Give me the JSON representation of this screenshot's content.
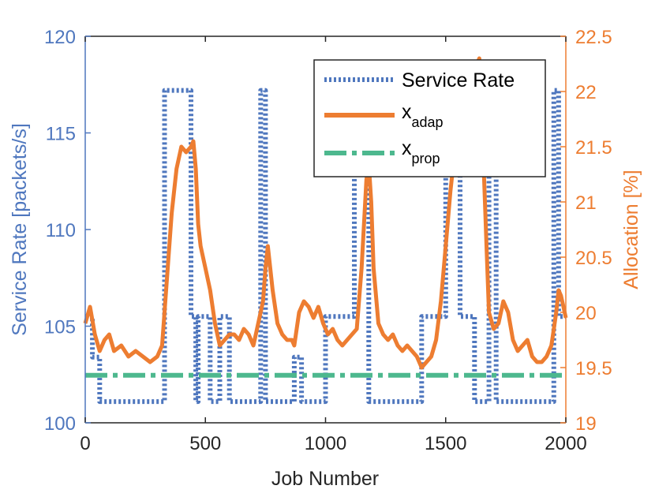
{
  "chart_data": {
    "type": "line",
    "xlabel": "Job Number",
    "ylabel_left": "Service Rate [packets/s]",
    "ylabel_right": "Allocation [%]",
    "xlim": [
      0,
      2000
    ],
    "ylim_left": [
      100,
      120
    ],
    "ylim_right": [
      19,
      22.5
    ],
    "x_ticks": [
      "0",
      "500",
      "1000",
      "1500",
      "2000"
    ],
    "x_tick_values": [
      0,
      500,
      1000,
      1500,
      2000
    ],
    "y_left_ticks": [
      "100",
      "105",
      "110",
      "115",
      "120"
    ],
    "y_left_tick_values": [
      100,
      105,
      110,
      115,
      120
    ],
    "y_right_ticks": [
      "19",
      "19.5",
      "20",
      "20.5",
      "21",
      "21.5",
      "22",
      "22.5"
    ],
    "y_right_tick_values": [
      19,
      19.5,
      20,
      20.5,
      21,
      21.5,
      22,
      22.5
    ],
    "legend": {
      "position": "top-right",
      "entries": [
        {
          "label": "Service Rate",
          "sub": ""
        },
        {
          "label": "x",
          "sub": "adap"
        },
        {
          "label": "x",
          "sub": "prop"
        }
      ]
    },
    "colors": {
      "service_rate": "#4f77be",
      "x_adap": "#ed7d31",
      "x_prop": "#4db88e",
      "axis": "#262626"
    },
    "series": [
      {
        "name": "Service Rate",
        "axis": "left",
        "style": "dotted",
        "x": [
          0,
          30,
          30,
          60,
          60,
          330,
          330,
          380,
          380,
          440,
          440,
          460,
          460,
          470,
          470,
          520,
          520,
          560,
          560,
          600,
          600,
          630,
          630,
          730,
          730,
          750,
          750,
          870,
          870,
          900,
          900,
          1000,
          1000,
          1120,
          1120,
          1180,
          1180,
          1200,
          1200,
          1400,
          1400,
          1500,
          1500,
          1560,
          1560,
          1620,
          1620,
          1680,
          1680,
          1710,
          1710,
          1730,
          1730,
          1950,
          1950,
          1970,
          1970,
          2000
        ],
        "y": [
          105.5,
          105.5,
          103.4,
          103.4,
          101.1,
          101.1,
          117.2,
          117.2,
          117.2,
          117.2,
          105.5,
          105.5,
          101.1,
          101.1,
          105.5,
          105.5,
          101.1,
          101.1,
          105.5,
          105.5,
          101.1,
          101.1,
          101.1,
          101.1,
          117.2,
          117.2,
          101.1,
          101.1,
          103.4,
          103.4,
          101.1,
          101.1,
          105.5,
          105.5,
          117.2,
          117.2,
          101.1,
          101.1,
          101.1,
          101.1,
          105.5,
          105.5,
          117.2,
          117.2,
          105.5,
          105.5,
          101.1,
          101.1,
          117.2,
          117.2,
          101.1,
          101.1,
          101.1,
          101.1,
          117.2,
          117.2,
          105.5,
          105.5
        ]
      },
      {
        "name": "x_adap",
        "axis": "right",
        "style": "solid",
        "x": [
          0,
          20,
          40,
          60,
          80,
          100,
          120,
          150,
          180,
          210,
          240,
          270,
          300,
          320,
          340,
          360,
          380,
          400,
          420,
          440,
          450,
          460,
          470,
          480,
          500,
          520,
          540,
          560,
          580,
          600,
          620,
          640,
          660,
          680,
          700,
          720,
          740,
          750,
          760,
          780,
          800,
          820,
          840,
          860,
          870,
          890,
          910,
          930,
          950,
          970,
          990,
          1010,
          1030,
          1050,
          1070,
          1090,
          1110,
          1130,
          1150,
          1170,
          1180,
          1190,
          1200,
          1220,
          1240,
          1260,
          1280,
          1300,
          1320,
          1340,
          1360,
          1380,
          1400,
          1420,
          1440,
          1460,
          1480,
          1500,
          1520,
          1540,
          1560,
          1580,
          1600,
          1620,
          1630,
          1640,
          1650,
          1660,
          1670,
          1680,
          1700,
          1720,
          1740,
          1760,
          1780,
          1800,
          1820,
          1840,
          1860,
          1880,
          1900,
          1920,
          1940,
          1950,
          1960,
          1970,
          1980,
          1990,
          2000
        ],
        "y": [
          19.9,
          20.05,
          19.8,
          19.65,
          19.75,
          19.8,
          19.65,
          19.7,
          19.6,
          19.65,
          19.6,
          19.55,
          19.6,
          19.7,
          20.3,
          20.9,
          21.3,
          21.5,
          21.45,
          21.5,
          21.55,
          21.3,
          20.8,
          20.6,
          20.4,
          20.2,
          19.9,
          19.7,
          19.75,
          19.8,
          19.8,
          19.75,
          19.85,
          19.8,
          19.7,
          19.9,
          20.1,
          20.4,
          20.6,
          20.2,
          19.9,
          19.8,
          19.75,
          19.75,
          19.7,
          20.0,
          20.1,
          20.05,
          19.95,
          20.05,
          19.9,
          19.8,
          19.85,
          19.75,
          19.7,
          19.75,
          19.8,
          19.85,
          20.4,
          21.2,
          21.35,
          21.0,
          20.4,
          19.9,
          19.8,
          19.75,
          19.8,
          19.7,
          19.65,
          19.7,
          19.65,
          19.6,
          19.5,
          19.55,
          19.6,
          19.75,
          20.1,
          20.6,
          21.1,
          21.5,
          21.8,
          21.9,
          21.95,
          22.1,
          22.25,
          22.3,
          21.8,
          21.2,
          20.6,
          20.0,
          19.85,
          19.9,
          20.1,
          20.0,
          19.75,
          19.65,
          19.7,
          19.75,
          19.6,
          19.55,
          19.55,
          19.6,
          19.7,
          19.85,
          20.0,
          20.2,
          20.15,
          20.05,
          19.95
        ]
      },
      {
        "name": "x_prop",
        "axis": "right",
        "style": "dashdot",
        "x": [
          0,
          2000
        ],
        "y": [
          19.43,
          19.43
        ]
      }
    ]
  }
}
